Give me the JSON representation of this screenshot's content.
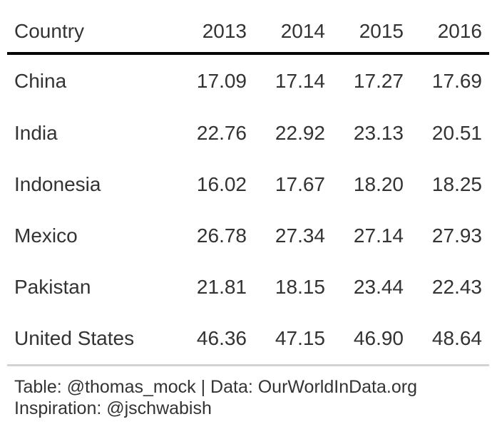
{
  "chart_data": {
    "type": "table",
    "columns": [
      "Country",
      "2013",
      "2014",
      "2015",
      "2016"
    ],
    "rows": [
      {
        "country": "China",
        "values": [
          "17.09",
          "17.14",
          "17.27",
          "17.69"
        ]
      },
      {
        "country": "India",
        "values": [
          "22.76",
          "22.92",
          "23.13",
          "20.51"
        ]
      },
      {
        "country": "Indonesia",
        "values": [
          "16.02",
          "17.67",
          "18.20",
          "18.25"
        ]
      },
      {
        "country": "Mexico",
        "values": [
          "26.78",
          "27.34",
          "27.14",
          "27.93"
        ]
      },
      {
        "country": "Pakistan",
        "values": [
          "21.81",
          "18.15",
          "23.44",
          "22.43"
        ]
      },
      {
        "country": "United States",
        "values": [
          "46.36",
          "47.15",
          "46.90",
          "48.64"
        ]
      }
    ]
  },
  "footer": {
    "source_line": "Table: @thomas_mock | Data: OurWorldInData.org",
    "inspiration_line": "Inspiration: @jschwabish"
  },
  "colors": {
    "text": "#333333",
    "header_rule": "#000000",
    "footer_rule": "#d3d3d3"
  }
}
